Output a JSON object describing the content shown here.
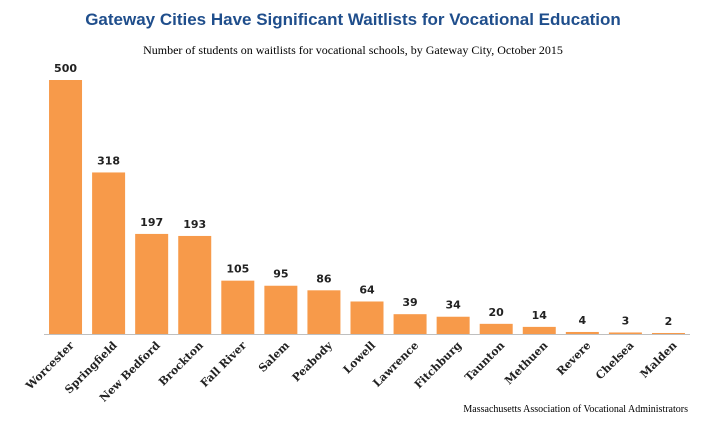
{
  "chart_data": {
    "type": "bar",
    "title": "Gateway Cities Have Significant Waitlists for Vocational Education",
    "subtitle": "Number of students on waitlists for vocational schools, by Gateway City, October 2015",
    "source": "Massachusetts Association of Vocational Administrators",
    "xlabel": "",
    "ylabel": "",
    "ylim": [
      0,
      500
    ],
    "grid": false,
    "bar_color": "#f79a4a",
    "categories": [
      "Worcester",
      "Springfield",
      "New Bedford",
      "Brockton",
      "Fall River",
      "Salem",
      "Peabody",
      "Lowell",
      "Lawrence",
      "Fitchburg",
      "Taunton",
      "Methuen",
      "Revere",
      "Chelsea",
      "Malden"
    ],
    "values": [
      500,
      318,
      197,
      193,
      105,
      95,
      86,
      64,
      39,
      34,
      20,
      14,
      4,
      3,
      2
    ]
  }
}
